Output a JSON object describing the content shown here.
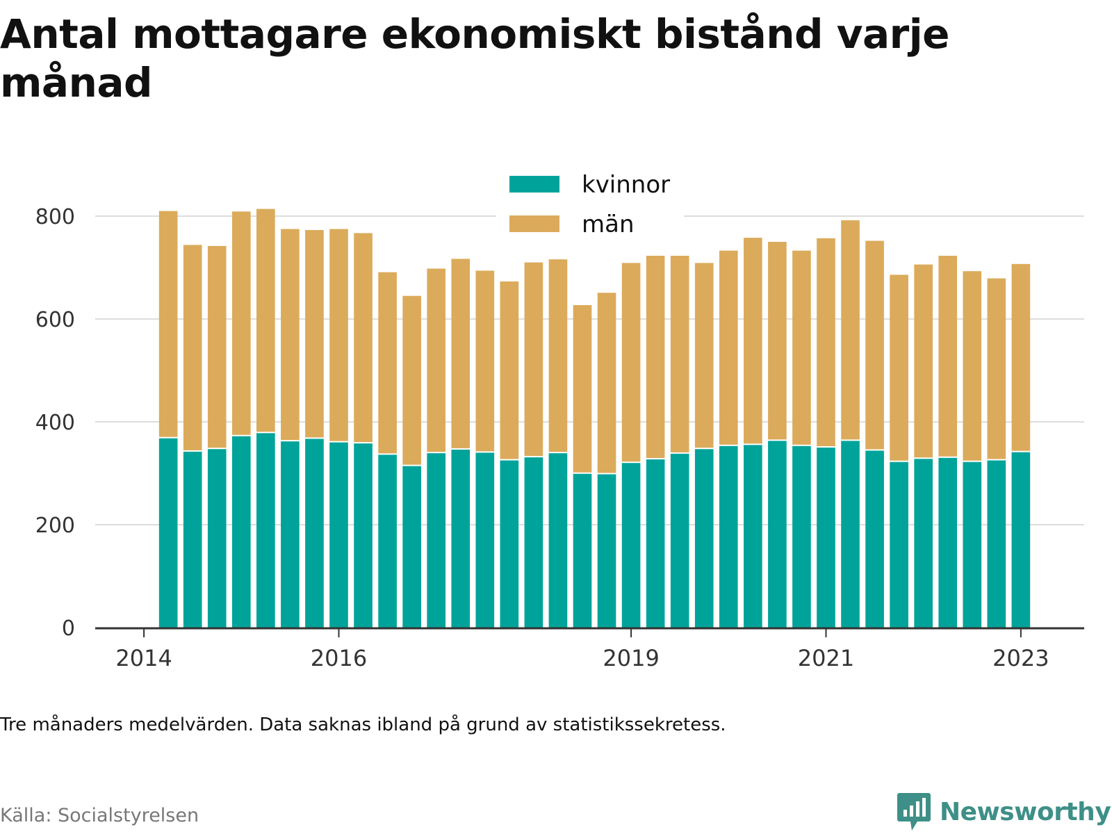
{
  "chart_data": {
    "type": "bar",
    "stacked": true,
    "title": "Antal mottagare ekonomiskt bistånd varje månad",
    "subtitle": "",
    "xlabel": "",
    "ylabel": "",
    "ylim": [
      0,
      800
    ],
    "yticks": [
      "0",
      "200",
      "400",
      "600",
      "800"
    ],
    "xticks": [
      {
        "label": "2014",
        "year": 2014
      },
      {
        "label": "2016",
        "year": 2016
      },
      {
        "label": "2019",
        "year": 2019
      },
      {
        "label": "2021",
        "year": 2021
      },
      {
        "label": "2023",
        "year": 2023
      }
    ],
    "x_domain": [
      2013.5,
      2023.65
    ],
    "grid": "horizontal",
    "legend_position": "top-center",
    "x": [
      2014.25,
      2014.5,
      2014.75,
      2015.0,
      2015.25,
      2015.5,
      2015.75,
      2016.0,
      2016.25,
      2016.5,
      2016.75,
      2017.0,
      2017.25,
      2017.5,
      2017.75,
      2018.0,
      2018.25,
      2018.5,
      2018.75,
      2019.0,
      2019.25,
      2019.5,
      2019.75,
      2020.0,
      2020.25,
      2020.5,
      2020.75,
      2021.0,
      2021.25,
      2021.5,
      2021.75,
      2022.0,
      2022.25,
      2022.5,
      2022.75,
      2023.0
    ],
    "series": [
      {
        "name": "kvinnor",
        "color": "#00a399",
        "values": [
          368,
          342,
          347,
          372,
          378,
          362,
          367,
          360,
          358,
          336,
          314,
          339,
          346,
          340,
          325,
          331,
          339,
          299,
          298,
          320,
          327,
          338,
          347,
          353,
          355,
          363,
          353,
          350,
          363,
          344,
          322,
          328,
          330,
          322,
          325,
          341
        ]
      },
      {
        "name": "män",
        "color": "#dbab5b",
        "values": [
          442,
          402,
          395,
          437,
          436,
          413,
          406,
          415,
          409,
          355,
          331,
          359,
          371,
          354,
          348,
          379,
          377,
          328,
          353,
          389,
          396,
          385,
          362,
          380,
          403,
          387,
          380,
          407,
          429,
          408,
          364,
          378,
          393,
          371,
          354,
          366
        ]
      }
    ]
  },
  "note": "Tre månaders medelvärden. Data saknas ibland på grund av statistikssekretess.",
  "source": "Källa: Socialstyrelsen",
  "logo": {
    "text": "Newsworthy",
    "icon": "newsworthy-chart-icon",
    "color": "#3e8f87"
  }
}
